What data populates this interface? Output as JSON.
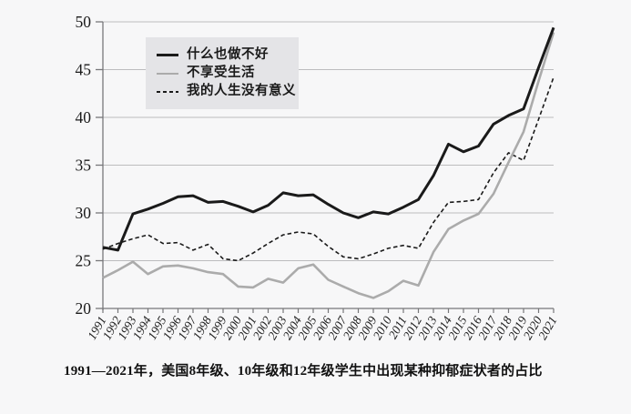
{
  "page": {
    "background": "#f7f7f8"
  },
  "chart_data": {
    "type": "line",
    "title": "",
    "xlabel": "",
    "ylabel": "",
    "ylim": [
      20,
      50
    ],
    "yticks": [
      20,
      25,
      30,
      35,
      40,
      45,
      50
    ],
    "grid": true,
    "legend_position": "top-left-inside",
    "x": [
      1991,
      1992,
      1993,
      1994,
      1995,
      1996,
      1997,
      1998,
      1999,
      2000,
      2001,
      2002,
      2003,
      2004,
      2005,
      2006,
      2007,
      2008,
      2009,
      2010,
      2011,
      2012,
      2013,
      2014,
      2015,
      2016,
      2017,
      2018,
      2019,
      2020,
      2021
    ],
    "series": [
      {
        "name": "什么也做不好",
        "style": "solid",
        "color": "#1a1a1a",
        "width": 3,
        "values": [
          26.4,
          26.1,
          29.9,
          30.4,
          31.0,
          31.7,
          31.8,
          31.1,
          31.2,
          30.7,
          30.1,
          30.8,
          32.1,
          31.8,
          31.9,
          30.9,
          30.0,
          29.5,
          30.1,
          29.9,
          30.6,
          31.4,
          33.9,
          37.2,
          36.4,
          37.0,
          39.3,
          40.2,
          40.9,
          45.2,
          49.4
        ]
      },
      {
        "name": "不享受生活",
        "style": "solid",
        "color": "#ababab",
        "width": 2.6,
        "values": [
          23.2,
          24.0,
          24.9,
          23.6,
          24.4,
          24.5,
          24.2,
          23.8,
          23.6,
          22.3,
          22.2,
          23.1,
          22.7,
          24.2,
          24.6,
          23.0,
          22.3,
          21.6,
          21.1,
          21.8,
          22.9,
          22.4,
          25.9,
          28.3,
          29.2,
          29.9,
          32.0,
          35.3,
          38.5,
          43.8,
          48.9
        ]
      },
      {
        "name": "我的人生没有意义",
        "style": "dashed",
        "color": "#1a1a1a",
        "width": 1.6,
        "values": [
          26.2,
          26.8,
          27.3,
          27.7,
          26.8,
          26.9,
          26.1,
          26.7,
          25.2,
          25.0,
          25.8,
          26.8,
          27.7,
          28.0,
          27.8,
          26.5,
          25.4,
          25.2,
          25.7,
          26.3,
          26.6,
          26.3,
          29.0,
          31.1,
          31.2,
          31.4,
          34.2,
          36.3,
          35.5,
          39.8,
          44.2
        ]
      }
    ],
    "caption": "1991—2021年，美国8年级、10年级和12年级学生中出现某种抑郁症状者的占比",
    "colors": {
      "gridline": "#bcbcbe",
      "axis": "#77777a",
      "tick_text": "#1a1a1a",
      "legend_bg": "#e4e4e7"
    }
  }
}
